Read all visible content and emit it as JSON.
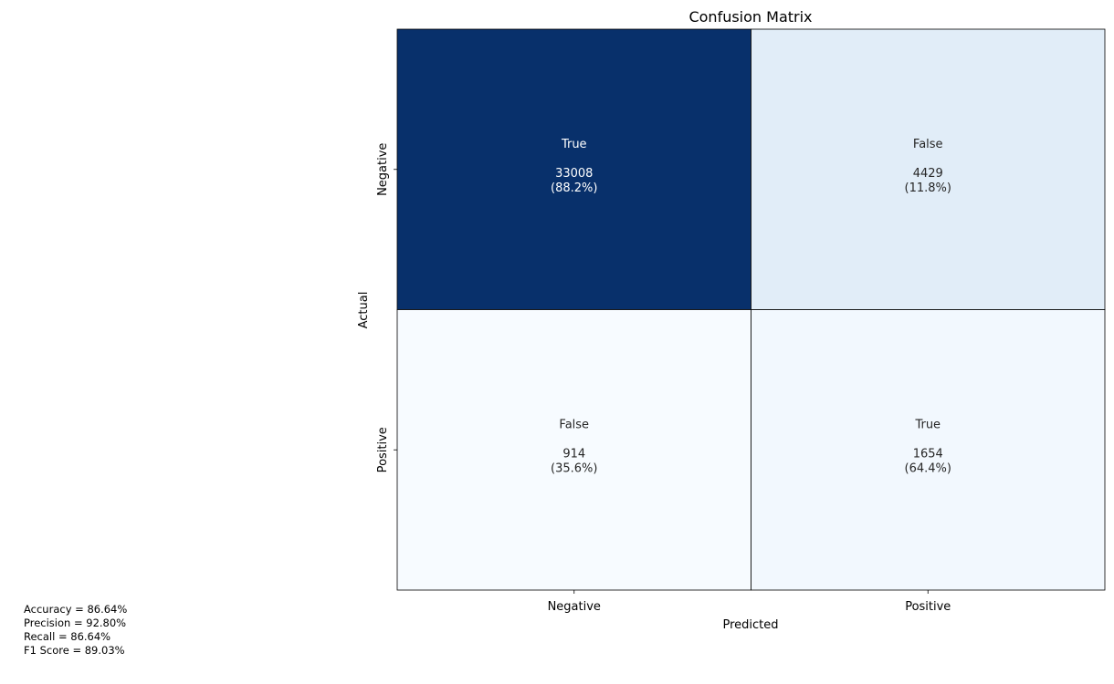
{
  "chart_data": {
    "type": "heatmap",
    "title": "Confusion Matrix",
    "xlabel": "Predicted",
    "ylabel": "Actual",
    "x_categories": [
      "Negative",
      "Positive"
    ],
    "y_categories": [
      "Negative",
      "Positive"
    ],
    "matrix": [
      [
        33008,
        4429
      ],
      [
        914,
        1654
      ]
    ],
    "cell_labels": [
      [
        "True",
        "False"
      ],
      [
        "False",
        "True"
      ]
    ],
    "cell_percents": [
      [
        "(88.2%)",
        "(11.8%)"
      ],
      [
        "(35.6%)",
        "(64.4%)"
      ]
    ],
    "row_fraction": [
      [
        0.882,
        0.118
      ],
      [
        0.356,
        0.644
      ]
    ],
    "colormap": "Blues",
    "colors": {
      "cell_text_dark_bg": "#ffffff",
      "cell_text_light_bg": "#262626",
      "cell_border": "#000000"
    },
    "colorbar": false,
    "grid": false
  },
  "metrics": {
    "accuracy": "Accuracy = 86.64%",
    "precision": "Precision = 92.80%",
    "recall": "Recall = 86.64%",
    "f1": "F1 Score = 89.03%"
  }
}
